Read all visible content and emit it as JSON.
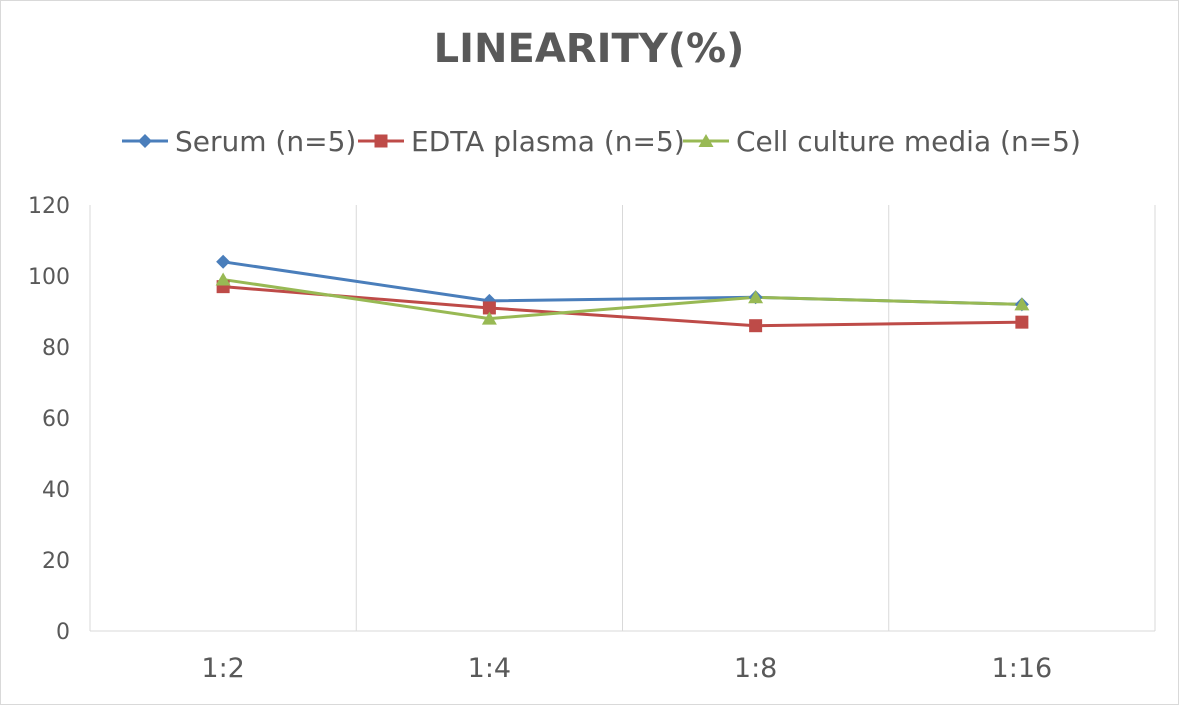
{
  "chart_data": {
    "type": "line",
    "title": "LINEARITY(%)",
    "xlabel": "",
    "ylabel": "",
    "categories": [
      "1:2",
      "1:4",
      "1:8",
      "1:16"
    ],
    "ylim": [
      0,
      120
    ],
    "yticks": [
      0,
      20,
      40,
      60,
      80,
      100,
      120
    ],
    "grid": "vertical",
    "legend_position": "top",
    "series": [
      {
        "name": "Serum (n=5)",
        "color": "#4a7ebb",
        "marker": "diamond",
        "values": [
          104,
          93,
          94,
          92
        ]
      },
      {
        "name": "EDTA plasma (n=5)",
        "color": "#be4b48",
        "marker": "square",
        "values": [
          97,
          91,
          86,
          87
        ]
      },
      {
        "name": "Cell culture media (n=5)",
        "color": "#98b954",
        "marker": "triangle",
        "values": [
          99,
          88,
          94,
          92
        ]
      }
    ]
  }
}
